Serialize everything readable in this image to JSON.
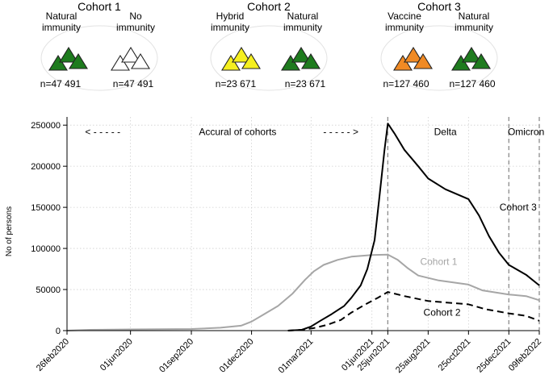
{
  "cohorts": [
    {
      "title": "Cohort 1",
      "groups": [
        {
          "label_lines": [
            "Natural",
            "immunity"
          ],
          "n_label": "n=47 491",
          "fill": "#1e7b1e"
        },
        {
          "label_lines": [
            "No",
            "immunity"
          ],
          "n_label": "n=47 491",
          "fill": "#ffffff"
        }
      ]
    },
    {
      "title": "Cohort 2",
      "groups": [
        {
          "label_lines": [
            "Hybrid",
            "immunity"
          ],
          "n_label": "n=23 671",
          "fill": "#f5ef1f"
        },
        {
          "label_lines": [
            "Natural",
            "immunity"
          ],
          "n_label": "n=23 671",
          "fill": "#1e7b1e"
        }
      ]
    },
    {
      "title": "Cohort 3",
      "groups": [
        {
          "label_lines": [
            "Vaccine",
            "immunity"
          ],
          "n_label": "n=127 460",
          "fill": "#f08a24"
        },
        {
          "label_lines": [
            "Natural",
            "immunity"
          ],
          "n_label": "n=127 460",
          "fill": "#1e7b1e"
        }
      ]
    }
  ],
  "chart_data": {
    "type": "line",
    "ylabel": "No of persons",
    "xlabel": "",
    "ylim": [
      0,
      260000
    ],
    "yticks": [
      0,
      50000,
      100000,
      150000,
      200000,
      250000
    ],
    "ytick_labels": [
      "0",
      "50000",
      "100000",
      "150000",
      "200000",
      "250000"
    ],
    "x_range": [
      "2020-02-26",
      "2022-02-09"
    ],
    "xticks": [
      {
        "date": "2020-02-26",
        "label": "26feb2020"
      },
      {
        "date": "2020-06-01",
        "label": "01jun2020"
      },
      {
        "date": "2020-09-01",
        "label": "01sep2020"
      },
      {
        "date": "2020-12-01",
        "label": "01dec2020"
      },
      {
        "date": "2021-03-01",
        "label": "01mar2021"
      },
      {
        "date": "2021-06-01",
        "label": "01jun2021"
      },
      {
        "date": "2021-06-25",
        "label": "25jun2021"
      },
      {
        "date": "2021-08-25",
        "label": "25aug2021"
      },
      {
        "date": "2021-10-25",
        "label": "25oct2021"
      },
      {
        "date": "2021-12-25",
        "label": "25dec2021"
      },
      {
        "date": "2022-02-09",
        "label": "09feb2022"
      }
    ],
    "grid": true,
    "vlines": [
      "2021-06-25",
      "2021-12-25",
      "2022-02-09"
    ],
    "annotations": [
      {
        "text": "< - - - - -",
        "date": "2020-04-20",
        "y": 238000
      },
      {
        "text": "Accural of cohorts",
        "date": "2020-11-10",
        "y": 238000
      },
      {
        "text": "- - - - - >",
        "date": "2021-04-15",
        "y": 238000
      },
      {
        "text": "Delta",
        "date": "2021-09-20",
        "y": 238000
      },
      {
        "text": "Omicron",
        "date": "2022-01-20",
        "y": 238000
      }
    ],
    "series": [
      {
        "name": "Cohort 1",
        "color": "#a6a6a6",
        "dash": "solid",
        "label_pos": {
          "date": "2021-09-10",
          "y": 80000
        },
        "points": [
          [
            "2020-02-26",
            0
          ],
          [
            "2020-04-01",
            1000
          ],
          [
            "2020-06-01",
            1500
          ],
          [
            "2020-09-01",
            2000
          ],
          [
            "2020-10-15",
            3500
          ],
          [
            "2020-11-15",
            6000
          ],
          [
            "2020-12-01",
            11000
          ],
          [
            "2020-12-20",
            20000
          ],
          [
            "2021-01-10",
            30000
          ],
          [
            "2021-02-01",
            45000
          ],
          [
            "2021-02-20",
            62000
          ],
          [
            "2021-03-05",
            72000
          ],
          [
            "2021-03-20",
            80000
          ],
          [
            "2021-04-10",
            86000
          ],
          [
            "2021-05-01",
            90000
          ],
          [
            "2021-06-01",
            92000
          ],
          [
            "2021-06-25",
            92500
          ],
          [
            "2021-07-10",
            86000
          ],
          [
            "2021-07-25",
            76000
          ],
          [
            "2021-08-10",
            67000
          ],
          [
            "2021-09-10",
            61000
          ],
          [
            "2021-10-25",
            56000
          ],
          [
            "2021-11-15",
            49000
          ],
          [
            "2021-12-25",
            44000
          ],
          [
            "2022-01-20",
            42000
          ],
          [
            "2022-02-09",
            37000
          ]
        ]
      },
      {
        "name": "Cohort 2",
        "color": "#000000",
        "dash": "dashed",
        "label_pos": {
          "date": "2021-09-15",
          "y": 18000
        },
        "points": [
          [
            "2021-01-25",
            0
          ],
          [
            "2021-02-15",
            1000
          ],
          [
            "2021-03-05",
            3000
          ],
          [
            "2021-03-25",
            7000
          ],
          [
            "2021-04-15",
            13000
          ],
          [
            "2021-05-01",
            22000
          ],
          [
            "2021-05-20",
            31000
          ],
          [
            "2021-06-10",
            40000
          ],
          [
            "2021-06-25",
            47000
          ],
          [
            "2021-07-20",
            42000
          ],
          [
            "2021-08-25",
            36000
          ],
          [
            "2021-10-25",
            32000
          ],
          [
            "2021-11-20",
            26000
          ],
          [
            "2021-12-25",
            21000
          ],
          [
            "2022-01-20",
            18000
          ],
          [
            "2022-02-09",
            12000
          ]
        ]
      },
      {
        "name": "Cohort 3",
        "color": "#000000",
        "dash": "solid",
        "label_pos": {
          "date": "2022-01-08",
          "y": 146000
        },
        "points": [
          [
            "2021-01-25",
            0
          ],
          [
            "2021-02-15",
            1000
          ],
          [
            "2021-03-01",
            5000
          ],
          [
            "2021-03-15",
            12000
          ],
          [
            "2021-04-01",
            20000
          ],
          [
            "2021-04-20",
            30000
          ],
          [
            "2021-05-01",
            40000
          ],
          [
            "2021-05-15",
            55000
          ],
          [
            "2021-05-25",
            75000
          ],
          [
            "2021-06-05",
            110000
          ],
          [
            "2021-06-12",
            160000
          ],
          [
            "2021-06-20",
            220000
          ],
          [
            "2021-06-25",
            252000
          ],
          [
            "2021-07-05",
            240000
          ],
          [
            "2021-07-20",
            220000
          ],
          [
            "2021-08-10",
            200000
          ],
          [
            "2021-08-25",
            185000
          ],
          [
            "2021-09-20",
            172000
          ],
          [
            "2021-10-25",
            160000
          ],
          [
            "2021-11-10",
            140000
          ],
          [
            "2021-11-25",
            115000
          ],
          [
            "2021-12-10",
            95000
          ],
          [
            "2021-12-25",
            80000
          ],
          [
            "2022-01-20",
            68000
          ],
          [
            "2022-02-09",
            55000
          ]
        ]
      }
    ]
  }
}
